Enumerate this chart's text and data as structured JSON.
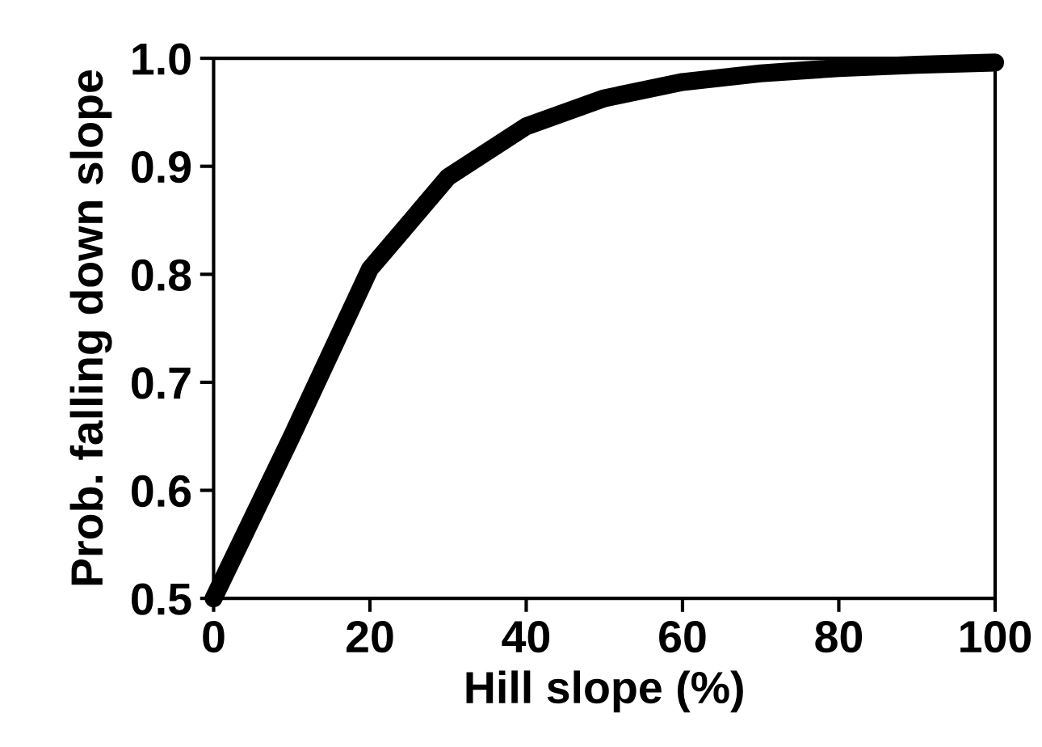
{
  "chart_data": {
    "type": "line",
    "xlabel": "Hill slope (%)",
    "ylabel": "Prob. falling down slope",
    "x": [
      0,
      10,
      20,
      30,
      40,
      50,
      60,
      70,
      80,
      90,
      100
    ],
    "series": [
      {
        "color": "#000000",
        "values": [
          0.5,
          0.65,
          0.805,
          0.89,
          0.937,
          0.963,
          0.978,
          0.986,
          0.991,
          0.994,
          0.996
        ]
      }
    ],
    "xlim": [
      0,
      100
    ],
    "xticks": [
      0,
      20,
      40,
      60,
      80,
      100
    ],
    "ylim": [
      0.5,
      1.0
    ],
    "yticks": [
      {
        "value": 0.5,
        "label": "0.5"
      },
      {
        "value": 0.6,
        "label": "0.6"
      },
      {
        "value": 0.7,
        "label": "0.7"
      },
      {
        "value": 0.8,
        "label": "0.8"
      },
      {
        "value": 0.9,
        "label": "0.9"
      },
      {
        "value": 1.0,
        "label": "1.0"
      }
    ],
    "grid": false,
    "legend": false,
    "line_style": "solid"
  }
}
